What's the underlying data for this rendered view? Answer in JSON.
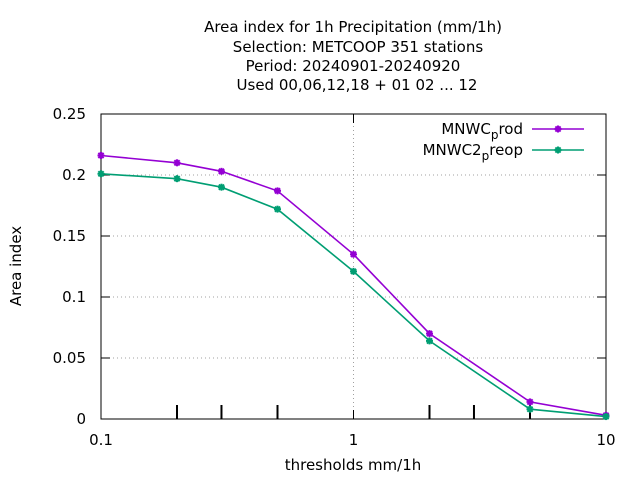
{
  "chart_data": {
    "type": "line",
    "title_lines": [
      "Area index  for 1h Precipitation (mm/1h)",
      "Selection: METCOOP    351 stations",
      "Period: 20240901-20240920",
      "Used  00,06,12,18 + 01 02 ... 12"
    ],
    "xlabel": "thresholds mm/1h",
    "ylabel": "Area index",
    "xscale": "log",
    "xlim": [
      0.1,
      10
    ],
    "ylim": [
      0,
      0.25
    ],
    "x_ticks": [
      0.1,
      1,
      10
    ],
    "x_tick_labels": [
      "0.1",
      "1",
      "10"
    ],
    "x_minor_ticks": [
      0.2,
      0.3,
      0.5,
      2,
      3,
      5
    ],
    "y_ticks": [
      0,
      0.05,
      0.1,
      0.15,
      0.2,
      0.25
    ],
    "y_tick_labels": [
      "0",
      "0.05",
      "0.1",
      "0.15",
      "0.2",
      "0.25"
    ],
    "grid": "dotted at major x ticks and all y ticks",
    "legend_position": "top-right",
    "x": [
      0.1,
      0.2,
      0.3,
      0.5,
      1,
      2,
      5,
      10
    ],
    "series": [
      {
        "legend_main": "MNWC",
        "legend_sub": "p",
        "legend_tail": "rod",
        "color": "#9400d3",
        "values": [
          0.216,
          0.21,
          0.203,
          0.187,
          0.135,
          0.07,
          0.014,
          0.003
        ]
      },
      {
        "legend_main": "MNWC2",
        "legend_sub": "p",
        "legend_tail": "reop",
        "color": "#009e73",
        "values": [
          0.201,
          0.197,
          0.19,
          0.172,
          0.121,
          0.064,
          0.008,
          0.002
        ]
      }
    ]
  }
}
